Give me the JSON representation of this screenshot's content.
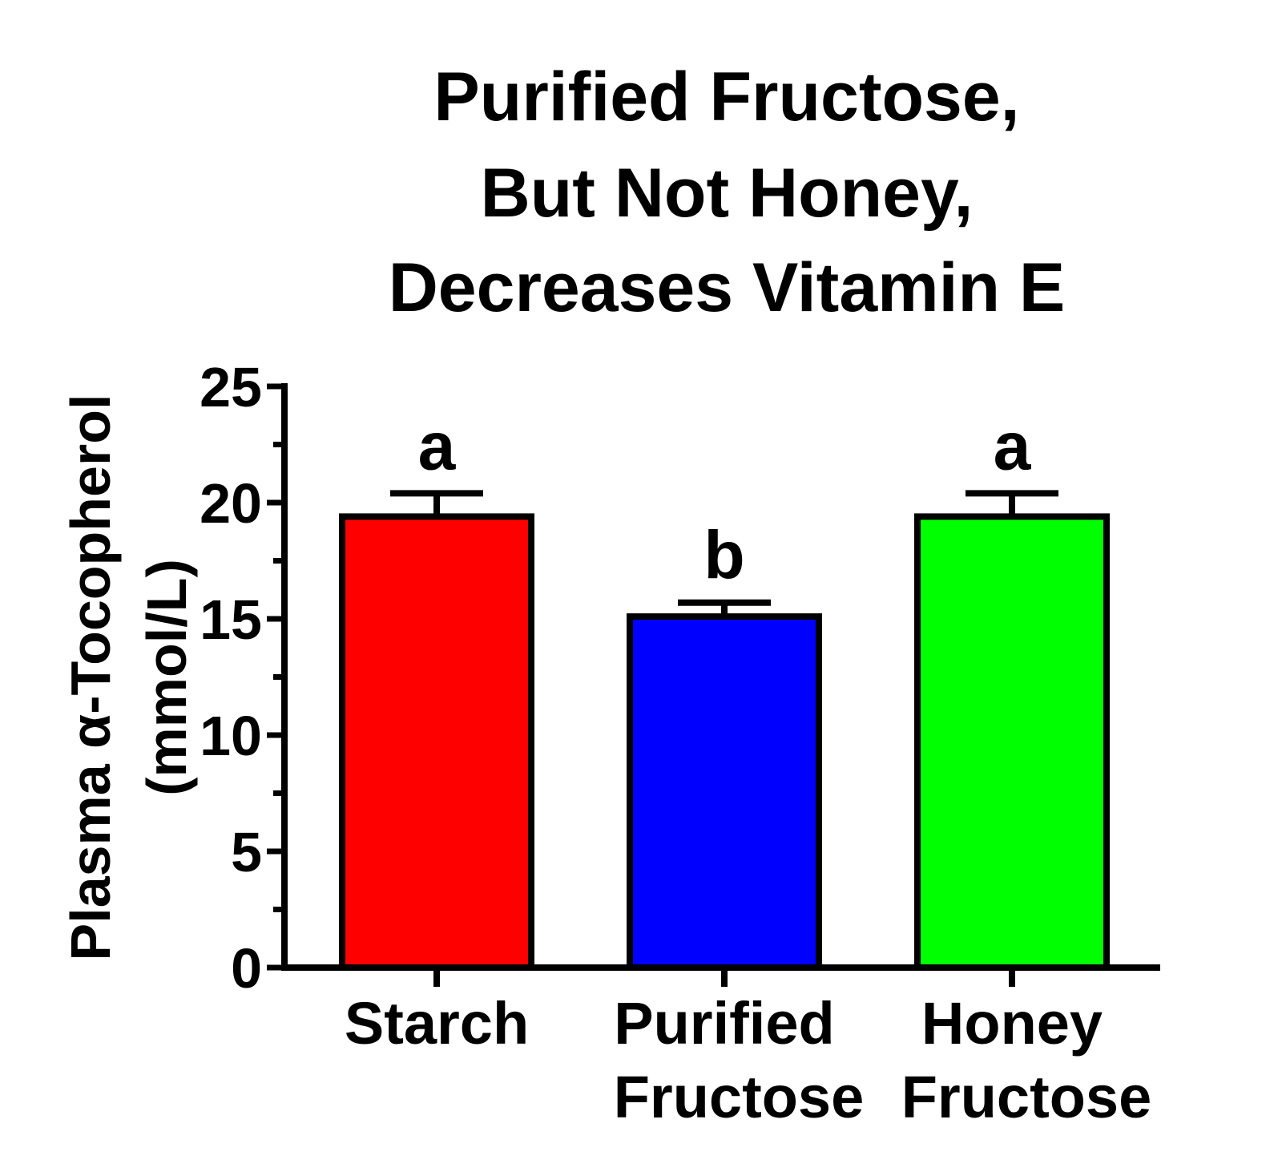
{
  "chart_data": {
    "type": "bar",
    "title": [
      "Purified Fructose,",
      "But Not Honey,",
      "Decreases Vitamin E"
    ],
    "ylabel": [
      "Plasma α-Tocopherol",
      "(mmol/L)"
    ],
    "xlabel": "",
    "ylim": [
      0,
      25
    ],
    "yticks": [
      0,
      5,
      10,
      15,
      20,
      25
    ],
    "y_minor_step": 2.5,
    "grid": false,
    "legend": "none",
    "categories": [
      [
        "Starch"
      ],
      [
        "Purified",
        "Fructose"
      ],
      [
        "Honey",
        "Fructose"
      ]
    ],
    "values": [
      19.4,
      15.1,
      19.4
    ],
    "errors": [
      1.0,
      0.6,
      1.0
    ],
    "significance_letters": [
      "a",
      "b",
      "a"
    ],
    "colors": [
      "#ff0000",
      "#0000ff",
      "#00ff00"
    ]
  }
}
